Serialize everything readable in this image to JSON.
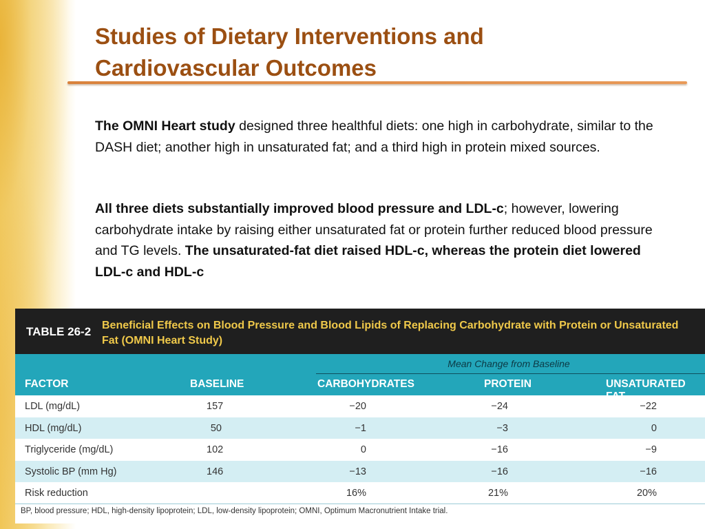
{
  "slide": {
    "title_line1": "Studies of Dietary Interventions and",
    "title_line2": "Cardiovascular Outcomes",
    "para1": {
      "bold": "The OMNI Heart study",
      "text": " designed three healthful diets: one high in carbohydrate, similar to the DASH diet; another high in unsaturated fat; and a third high in protein mixed sources."
    },
    "para2": {
      "bold1": "All three diets substantially improved blood pressure and LDL-c",
      "text": "; however, lowering carbohydrate intake by raising either unsaturated fat or protein further reduced blood pressure and TG levels. ",
      "bold2": "The unsaturated-fat diet raised HDL-c, whereas the protein diet lowered LDL-c and HDL-c"
    }
  },
  "table": {
    "number": "TABLE 26-2",
    "caption": "Beneficial Effects on Blood Pressure and Blood Lipids of Replacing Carbohydrate with Protein or Unsaturated Fat (OMNI Heart Study)",
    "group_header": "Mean Change from Baseline",
    "columns": [
      "FACTOR",
      "BASELINE",
      "CARBOHYDRATES",
      "PROTEIN",
      "UNSATURATED FAT"
    ],
    "rows": [
      {
        "factor": "LDL (mg/dL)",
        "baseline": "157",
        "carbohydrates": "−20",
        "protein": "−24",
        "unsaturated_fat": "−22"
      },
      {
        "factor": "HDL (mg/dL)",
        "baseline": "50",
        "carbohydrates": "−1",
        "protein": "−3",
        "unsaturated_fat": "0"
      },
      {
        "factor": "Triglyceride (mg/dL)",
        "baseline": "102",
        "carbohydrates": "0",
        "protein": "−16",
        "unsaturated_fat": "−9"
      },
      {
        "factor": "Systolic BP (mm Hg)",
        "baseline": "146",
        "carbohydrates": "−13",
        "protein": "−16",
        "unsaturated_fat": "−16"
      },
      {
        "factor": "Risk reduction",
        "baseline": "",
        "carbohydrates": "16%",
        "protein": "21%",
        "unsaturated_fat": "20%"
      }
    ],
    "footnote": "BP, blood pressure; HDL, high-density lipoprotein; LDL, low-density lipoprotein; OMNI, Optimum Macronutrient Intake trial."
  },
  "colors": {
    "title": "#9b4f12",
    "rule": "#d9823c",
    "table_header_bg": "#1f1f1f",
    "table_caption": "#f0c94a",
    "teal": "#23a6ba",
    "row_alt": "#d4eef3"
  }
}
